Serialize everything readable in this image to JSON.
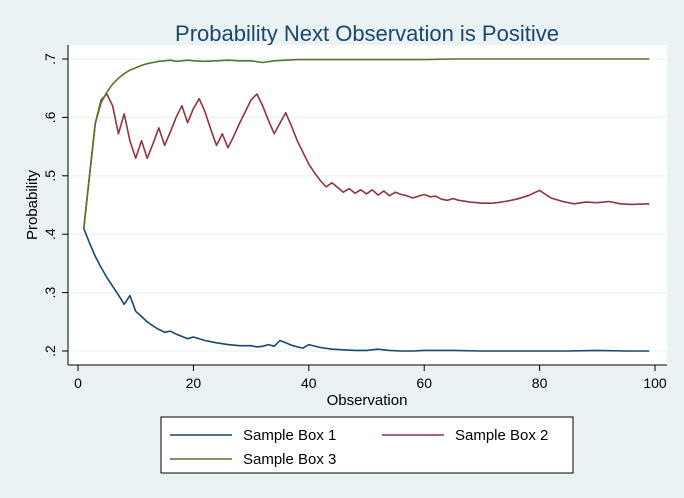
{
  "chart_data": {
    "type": "line",
    "title": "Probability Next Observation is Positive",
    "xlabel": "Observation",
    "ylabel": "Probability",
    "xlim": [
      0,
      100
    ],
    "ylim": [
      0.2,
      0.7
    ],
    "x_ticks": [
      0,
      20,
      40,
      60,
      80,
      100
    ],
    "x_tick_labels": [
      "0",
      "20",
      "40",
      "60",
      "80",
      "100"
    ],
    "y_ticks": [
      0.2,
      0.3,
      0.4,
      0.5,
      0.6,
      0.7
    ],
    "y_tick_labels": [
      ".2",
      ".3",
      ".4",
      ".5",
      ".6",
      ".7"
    ],
    "grid": "horizontal",
    "legend_position": "bottom",
    "colors": {
      "background": "#EAF2F3",
      "plot_background": "#FFFFFF",
      "title": "#1a476f",
      "grid": "#EAF2F3"
    },
    "series": [
      {
        "name": "Sample Box 1",
        "color": "#1a476f",
        "x": [
          1,
          2,
          3,
          4,
          5,
          6,
          7,
          8,
          9,
          10,
          11,
          12,
          13,
          14,
          15,
          16,
          17,
          18,
          19,
          20,
          22,
          24,
          26,
          28,
          30,
          31,
          32,
          33,
          34,
          35,
          36,
          37,
          38,
          39,
          40,
          42,
          44,
          46,
          48,
          50,
          52,
          54,
          56,
          58,
          60,
          65,
          70,
          75,
          80,
          85,
          90,
          95,
          99
        ],
        "y": [
          0.41,
          0.385,
          0.362,
          0.343,
          0.326,
          0.311,
          0.296,
          0.28,
          0.295,
          0.268,
          0.259,
          0.25,
          0.243,
          0.237,
          0.232,
          0.234,
          0.229,
          0.225,
          0.221,
          0.224,
          0.218,
          0.214,
          0.211,
          0.209,
          0.209,
          0.207,
          0.208,
          0.211,
          0.208,
          0.218,
          0.214,
          0.21,
          0.207,
          0.205,
          0.211,
          0.206,
          0.203,
          0.202,
          0.201,
          0.201,
          0.203,
          0.201,
          0.2,
          0.2,
          0.201,
          0.201,
          0.2,
          0.2,
          0.2,
          0.2,
          0.201,
          0.2,
          0.2
        ]
      },
      {
        "name": "Sample Box 2",
        "color": "#90353b",
        "x": [
          1,
          2,
          3,
          4,
          5,
          6,
          7,
          8,
          9,
          10,
          11,
          12,
          13,
          14,
          15,
          16,
          17,
          18,
          19,
          20,
          21,
          22,
          23,
          24,
          25,
          26,
          27,
          28,
          29,
          30,
          31,
          32,
          33,
          34,
          35,
          36,
          37,
          38,
          39,
          40,
          41,
          42,
          43,
          44,
          45,
          46,
          47,
          48,
          49,
          50,
          51,
          52,
          53,
          54,
          55,
          56,
          57,
          58,
          59,
          60,
          61,
          62,
          63,
          64,
          65,
          66,
          68,
          70,
          72,
          74,
          76,
          78,
          80,
          82,
          84,
          86,
          88,
          90,
          92,
          94,
          96,
          99
        ],
        "y": [
          0.41,
          0.5,
          0.59,
          0.63,
          0.64,
          0.62,
          0.572,
          0.606,
          0.56,
          0.53,
          0.56,
          0.53,
          0.555,
          0.582,
          0.552,
          0.575,
          0.6,
          0.62,
          0.591,
          0.615,
          0.632,
          0.61,
          0.58,
          0.552,
          0.572,
          0.548,
          0.568,
          0.59,
          0.61,
          0.63,
          0.64,
          0.62,
          0.595,
          0.572,
          0.59,
          0.608,
          0.585,
          0.56,
          0.54,
          0.52,
          0.505,
          0.492,
          0.481,
          0.488,
          0.48,
          0.472,
          0.478,
          0.47,
          0.476,
          0.469,
          0.476,
          0.467,
          0.474,
          0.466,
          0.472,
          0.468,
          0.466,
          0.462,
          0.465,
          0.468,
          0.464,
          0.465,
          0.46,
          0.458,
          0.461,
          0.458,
          0.455,
          0.453,
          0.453,
          0.456,
          0.46,
          0.466,
          0.475,
          0.462,
          0.456,
          0.452,
          0.455,
          0.454,
          0.456,
          0.452,
          0.451,
          0.452
        ]
      },
      {
        "name": "Sample Box 3",
        "color": "#55752f",
        "x": [
          1,
          2,
          3,
          4,
          5,
          6,
          7,
          8,
          9,
          10,
          11,
          12,
          13,
          14,
          15,
          16,
          17,
          18,
          19,
          20,
          22,
          24,
          26,
          28,
          30,
          32,
          34,
          36,
          38,
          40,
          45,
          50,
          55,
          60,
          65,
          70,
          75,
          80,
          85,
          90,
          95,
          99
        ],
        "y": [
          0.41,
          0.5,
          0.59,
          0.625,
          0.643,
          0.657,
          0.667,
          0.675,
          0.681,
          0.685,
          0.689,
          0.692,
          0.694,
          0.696,
          0.697,
          0.698,
          0.696,
          0.697,
          0.698,
          0.697,
          0.696,
          0.697,
          0.698,
          0.697,
          0.697,
          0.694,
          0.697,
          0.698,
          0.699,
          0.699,
          0.699,
          0.699,
          0.699,
          0.699,
          0.7,
          0.7,
          0.7,
          0.7,
          0.7,
          0.7,
          0.7,
          0.7
        ]
      }
    ]
  }
}
